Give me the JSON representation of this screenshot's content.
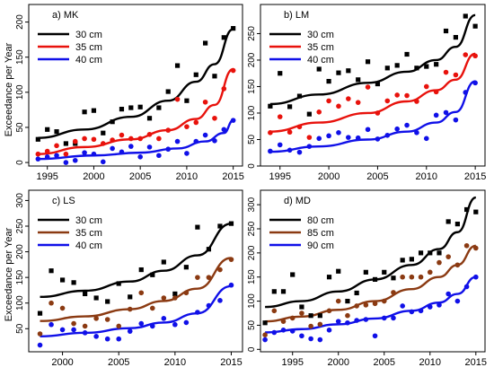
{
  "figure": {
    "ylabel": "Exceedance per Year"
  },
  "chart_data": [
    {
      "type": "scatter",
      "panel_label": "a) MK",
      "xlim": [
        1993,
        2016
      ],
      "ylim": [
        -5,
        225
      ],
      "xticks": [
        "1995",
        "2000",
        "2005",
        "2010",
        "2015"
      ],
      "xtick_values": [
        1995,
        2000,
        2005,
        2010,
        2015
      ],
      "yticks": [
        "0",
        "50",
        "100",
        "150",
        "200"
      ],
      "ytick_values": [
        0,
        50,
        100,
        150,
        200
      ],
      "grid": false,
      "legend_position": "top-left",
      "series": [
        {
          "name": "30 cm",
          "color": "#000000",
          "marker": "square",
          "x": [
            1994,
            1995,
            1996,
            1997,
            1998,
            1999,
            2000,
            2001,
            2002,
            2003,
            2004,
            2005,
            2006,
            2007,
            2008,
            2009,
            2010,
            2011,
            2012,
            2013,
            2014,
            2015
          ],
          "y": [
            33,
            47,
            44,
            27,
            27,
            72,
            74,
            42,
            58,
            76,
            78,
            79,
            63,
            78,
            101,
            138,
            88,
            125,
            170,
            123,
            178,
            191
          ],
          "fit": [
            [
              1994,
              35
            ],
            [
              1999,
              47
            ],
            [
              2004,
              65
            ],
            [
              2008,
              88
            ],
            [
              2011,
              115
            ],
            [
              2013,
              140
            ],
            [
              2015,
              190
            ]
          ]
        },
        {
          "name": "35 cm",
          "color": "#e8120c",
          "marker": "circle",
          "x": [
            1994,
            1995,
            1996,
            1997,
            1998,
            1999,
            2000,
            2001,
            2002,
            2003,
            2004,
            2005,
            2006,
            2007,
            2008,
            2009,
            2010,
            2011,
            2012,
            2013,
            2014,
            2015
          ],
          "y": [
            12,
            16,
            24,
            12,
            30,
            34,
            33,
            27,
            32,
            39,
            34,
            34,
            40,
            34,
            46,
            90,
            51,
            57,
            86,
            63,
            105,
            131
          ],
          "fit": [
            [
              1994,
              12
            ],
            [
              1999,
              22
            ],
            [
              2004,
              33
            ],
            [
              2008,
              46
            ],
            [
              2011,
              62
            ],
            [
              2013,
              82
            ],
            [
              2015,
              133
            ]
          ]
        },
        {
          "name": "40 cm",
          "color": "#1010e8",
          "marker": "circle",
          "x": [
            1994,
            1995,
            1996,
            1997,
            1998,
            1999,
            2000,
            2001,
            2002,
            2003,
            2004,
            2005,
            2006,
            2007,
            2008,
            2009,
            2010,
            2011,
            2012,
            2013,
            2014,
            2015
          ],
          "y": [
            5,
            8,
            10,
            0,
            3,
            14,
            12,
            1,
            20,
            15,
            23,
            8,
            22,
            10,
            19,
            30,
            13,
            30,
            39,
            31,
            47,
            60
          ],
          "fit": [
            [
              1994,
              5
            ],
            [
              2000,
              10
            ],
            [
              2005,
              14
            ],
            [
              2009,
              20
            ],
            [
              2012,
              30
            ],
            [
              2014,
              42
            ],
            [
              2015,
              60
            ]
          ]
        }
      ]
    },
    {
      "type": "scatter",
      "panel_label": "b) LM",
      "xlim": [
        1993,
        2016
      ],
      "ylim": [
        0,
        305
      ],
      "xticks": [
        "1995",
        "2000",
        "2005",
        "2010",
        "2015"
      ],
      "xtick_values": [
        1995,
        2000,
        2005,
        2010,
        2015
      ],
      "yticks": [
        "0",
        "50",
        "100",
        "150",
        "200",
        "250"
      ],
      "ytick_values": [
        0,
        50,
        100,
        150,
        200,
        250
      ],
      "grid": false,
      "legend_position": "top-left",
      "series": [
        {
          "name": "30 cm",
          "color": "#000000",
          "marker": "square",
          "x": [
            1994,
            1995,
            1996,
            1997,
            1998,
            1999,
            2000,
            2001,
            2002,
            2003,
            2004,
            2005,
            2006,
            2007,
            2008,
            2009,
            2010,
            2011,
            2012,
            2013,
            2014,
            2015
          ],
          "y": [
            113,
            175,
            112,
            132,
            98,
            183,
            160,
            176,
            180,
            163,
            197,
            155,
            185,
            190,
            211,
            185,
            188,
            192,
            255,
            243,
            283,
            264
          ],
          "fit": [
            [
              1994,
              117
            ],
            [
              1999,
              135
            ],
            [
              2004,
              157
            ],
            [
              2008,
              178
            ],
            [
              2011,
              200
            ],
            [
              2013,
              225
            ],
            [
              2015,
              285
            ]
          ]
        },
        {
          "name": "35 cm",
          "color": "#e8120c",
          "marker": "circle",
          "x": [
            1994,
            1995,
            1996,
            1997,
            1998,
            1999,
            2000,
            2001,
            2002,
            2003,
            2004,
            2005,
            2006,
            2007,
            2008,
            2009,
            2010,
            2011,
            2012,
            2013,
            2014,
            2015
          ],
          "y": [
            63,
            93,
            64,
            74,
            54,
            102,
            123,
            113,
            127,
            120,
            149,
            100,
            123,
            134,
            133,
            122,
            150,
            140,
            177,
            172,
            210,
            208
          ],
          "fit": [
            [
              1994,
              65
            ],
            [
              1999,
              82
            ],
            [
              2004,
              100
            ],
            [
              2008,
              122
            ],
            [
              2011,
              143
            ],
            [
              2013,
              163
            ],
            [
              2015,
              212
            ]
          ]
        },
        {
          "name": "40 cm",
          "color": "#1010e8",
          "marker": "circle",
          "x": [
            1994,
            1995,
            1996,
            1997,
            1998,
            1999,
            2000,
            2001,
            2002,
            2003,
            2004,
            2005,
            2006,
            2007,
            2008,
            2009,
            2010,
            2011,
            2012,
            2013,
            2014,
            2015
          ],
          "y": [
            28,
            40,
            30,
            26,
            37,
            52,
            57,
            63,
            54,
            53,
            69,
            51,
            58,
            70,
            77,
            63,
            52,
            96,
            101,
            87,
            139,
            157
          ],
          "fit": [
            [
              1994,
              27
            ],
            [
              1999,
              37
            ],
            [
              2004,
              50
            ],
            [
              2008,
              65
            ],
            [
              2011,
              82
            ],
            [
              2013,
              102
            ],
            [
              2015,
              160
            ]
          ]
        }
      ]
    },
    {
      "type": "scatter",
      "panel_label": "c) LS",
      "xlim": [
        1997,
        2016
      ],
      "ylim": [
        5,
        320
      ],
      "xticks": [
        "2000",
        "2005",
        "2010",
        "2015"
      ],
      "xtick_values": [
        2000,
        2005,
        2010,
        2015
      ],
      "yticks": [
        "50",
        "100",
        "150",
        "200",
        "250",
        "300"
      ],
      "ytick_values": [
        50,
        100,
        150,
        200,
        250,
        300
      ],
      "grid": false,
      "legend_position": "top-left",
      "series": [
        {
          "name": "30 cm",
          "color": "#000000",
          "marker": "square",
          "x": [
            1998,
            1999,
            2000,
            2001,
            2002,
            2003,
            2004,
            2005,
            2006,
            2007,
            2008,
            2009,
            2010,
            2011,
            2012,
            2013,
            2014,
            2015
          ],
          "y": [
            80,
            163,
            145,
            140,
            118,
            110,
            103,
            138,
            112,
            165,
            155,
            180,
            118,
            170,
            248,
            205,
            250,
            255
          ],
          "fit": [
            [
              1998,
              112
            ],
            [
              2002,
              124
            ],
            [
              2006,
              142
            ],
            [
              2009,
              163
            ],
            [
              2012,
              193
            ],
            [
              2015,
              255
            ]
          ]
        },
        {
          "name": "35 cm",
          "color": "#8b3a12",
          "marker": "circle",
          "x": [
            1998,
            1999,
            2000,
            2001,
            2002,
            2003,
            2004,
            2005,
            2006,
            2007,
            2008,
            2009,
            2010,
            2011,
            2012,
            2013,
            2014,
            2015
          ],
          "y": [
            40,
            100,
            90,
            60,
            55,
            70,
            68,
            55,
            88,
            120,
            90,
            110,
            110,
            120,
            150,
            150,
            165,
            185
          ],
          "fit": [
            [
              1998,
              65
            ],
            [
              2002,
              74
            ],
            [
              2006,
              88
            ],
            [
              2009,
              104
            ],
            [
              2012,
              128
            ],
            [
              2015,
              188
            ]
          ]
        },
        {
          "name": "40 cm",
          "color": "#1010e8",
          "marker": "circle",
          "x": [
            1998,
            1999,
            2000,
            2001,
            2002,
            2003,
            2004,
            2005,
            2006,
            2007,
            2008,
            2009,
            2010,
            2011,
            2012,
            2013,
            2014,
            2015
          ],
          "y": [
            18,
            58,
            48,
            48,
            42,
            35,
            30,
            30,
            45,
            60,
            55,
            70,
            58,
            62,
            82,
            95,
            105,
            135
          ],
          "fit": [
            [
              1998,
              35
            ],
            [
              2002,
              42
            ],
            [
              2006,
              51
            ],
            [
              2009,
              62
            ],
            [
              2012,
              80
            ],
            [
              2015,
              133
            ]
          ]
        }
      ]
    },
    {
      "type": "scatter",
      "panel_label": "d) MD",
      "xlim": [
        1991.5,
        2016
      ],
      "ylim": [
        -5,
        330
      ],
      "xticks": [
        "1995",
        "2000",
        "2005",
        "2010",
        "2015"
      ],
      "xtick_values": [
        1995,
        2000,
        2005,
        2010,
        2015
      ],
      "yticks": [
        "0",
        "50",
        "100",
        "150",
        "200",
        "250",
        "300"
      ],
      "ytick_values": [
        0,
        50,
        100,
        150,
        200,
        250,
        300
      ],
      "grid": false,
      "legend_position": "top-left",
      "series": [
        {
          "name": "80 cm",
          "color": "#000000",
          "marker": "square",
          "x": [
            1992,
            1993,
            1994,
            1995,
            1996,
            1997,
            1998,
            1999,
            2000,
            2001,
            2002,
            2003,
            2004,
            2005,
            2006,
            2007,
            2008,
            2009,
            2010,
            2011,
            2012,
            2013,
            2014,
            2015
          ],
          "y": [
            55,
            120,
            120,
            155,
            88,
            70,
            70,
            150,
            162,
            100,
            117,
            160,
            145,
            160,
            148,
            185,
            187,
            200,
            200,
            200,
            265,
            260,
            290,
            285
          ],
          "fit": [
            [
              1992,
              88
            ],
            [
              1996,
              100
            ],
            [
              2000,
              120
            ],
            [
              2004,
              145
            ],
            [
              2008,
              175
            ],
            [
              2011,
              208
            ],
            [
              2013,
              243
            ],
            [
              2015,
              315
            ]
          ]
        },
        {
          "name": "85 cm",
          "color": "#8b3a12",
          "marker": "circle",
          "x": [
            1992,
            1993,
            1994,
            1995,
            1996,
            1997,
            1998,
            1999,
            2000,
            2001,
            2002,
            2003,
            2004,
            2005,
            2006,
            2007,
            2008,
            2009,
            2010,
            2011,
            2012,
            2013,
            2014,
            2015
          ],
          "y": [
            30,
            80,
            58,
            65,
            75,
            48,
            52,
            80,
            100,
            70,
            90,
            92,
            95,
            100,
            118,
            150,
            150,
            150,
            160,
            180,
            192,
            175,
            215,
            210
          ],
          "fit": [
            [
              1992,
              58
            ],
            [
              1996,
              68
            ],
            [
              2000,
              82
            ],
            [
              2004,
              100
            ],
            [
              2008,
              125
            ],
            [
              2011,
              150
            ],
            [
              2013,
              175
            ],
            [
              2015,
              215
            ]
          ]
        },
        {
          "name": "90 cm",
          "color": "#1010e8",
          "marker": "circle",
          "x": [
            1992,
            1993,
            1994,
            1995,
            1996,
            1997,
            1998,
            1999,
            2000,
            2001,
            2002,
            2003,
            2004,
            2005,
            2006,
            2007,
            2008,
            2009,
            2010,
            2011,
            2012,
            2013,
            2014,
            2015
          ],
          "y": [
            20,
            35,
            40,
            38,
            28,
            22,
            20,
            40,
            58,
            55,
            60,
            62,
            28,
            65,
            65,
            90,
            78,
            80,
            88,
            92,
            115,
            100,
            130,
            150
          ],
          "fit": [
            [
              1992,
              35
            ],
            [
              1996,
              42
            ],
            [
              2000,
              52
            ],
            [
              2004,
              64
            ],
            [
              2008,
              80
            ],
            [
              2011,
              97
            ],
            [
              2013,
              115
            ],
            [
              2015,
              150
            ]
          ]
        }
      ]
    }
  ]
}
